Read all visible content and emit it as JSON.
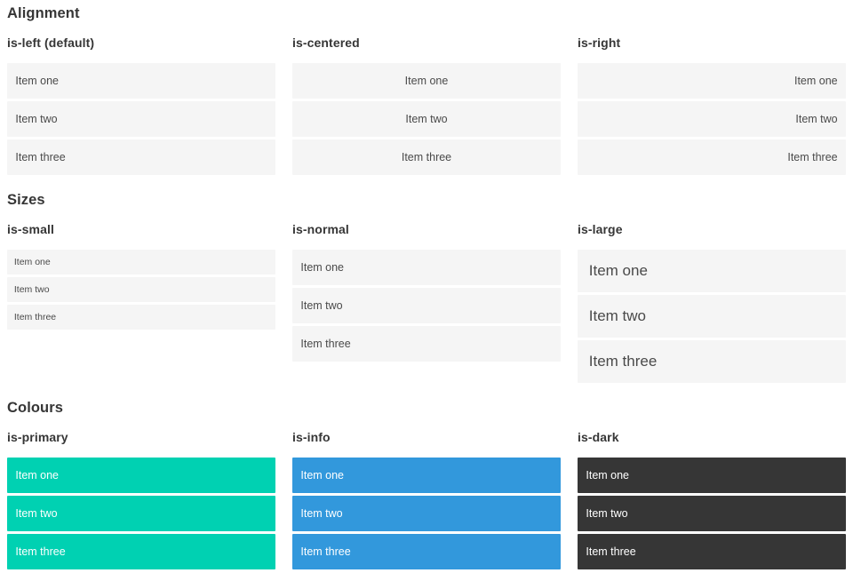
{
  "colors": {
    "primary": "#00d1b2",
    "info": "#3298dc",
    "dark": "#363636",
    "item_background": "#f5f5f5",
    "item_text": "#4a4a4a",
    "heading_text": "#363636",
    "colored_item_text": "#ffffff"
  },
  "sections": [
    {
      "title": "Alignment",
      "columns": [
        {
          "label": "is-left (default)",
          "style": "left",
          "items": [
            "Item one",
            "Item two",
            "Item three"
          ]
        },
        {
          "label": "is-centered",
          "style": "centered",
          "items": [
            "Item one",
            "Item two",
            "Item three"
          ]
        },
        {
          "label": "is-right",
          "style": "right",
          "items": [
            "Item one",
            "Item two",
            "Item three"
          ]
        }
      ]
    },
    {
      "title": "Sizes",
      "columns": [
        {
          "label": "is-small",
          "style": "small",
          "items": [
            "Item one",
            "Item two",
            "Item three"
          ]
        },
        {
          "label": "is-normal",
          "style": "normal",
          "items": [
            "Item one",
            "Item two",
            "Item three"
          ]
        },
        {
          "label": "is-large",
          "style": "large",
          "items": [
            "Item one",
            "Item two",
            "Item three"
          ]
        }
      ]
    },
    {
      "title": "Colours",
      "columns": [
        {
          "label": "is-primary",
          "style": "primary",
          "items": [
            "Item one",
            "Item two",
            "Item three"
          ]
        },
        {
          "label": "is-info",
          "style": "info",
          "items": [
            "Item one",
            "Item two",
            "Item three"
          ]
        },
        {
          "label": "is-dark",
          "style": "dark",
          "items": [
            "Item one",
            "Item two",
            "Item three"
          ]
        }
      ]
    }
  ]
}
